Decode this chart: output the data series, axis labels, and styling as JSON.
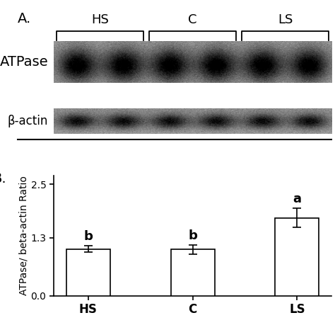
{
  "panel_a_label": "A.",
  "panel_b_label": "B.",
  "groups": [
    "HS",
    "C",
    "LS"
  ],
  "bar_values": [
    1.05,
    1.04,
    1.75
  ],
  "bar_errors": [
    0.07,
    0.1,
    0.22
  ],
  "bar_color": "#ffffff",
  "bar_edgecolor": "#000000",
  "ylim": [
    0,
    2.7
  ],
  "yticks": [
    0.0,
    1.3,
    2.5
  ],
  "ylabel": "ATPase/ beta-actin Ratio",
  "significance_labels": [
    "b",
    "b",
    "a"
  ],
  "sig_fontsize": 13,
  "axis_fontsize": 10,
  "tick_fontsize": 10,
  "group_label_fontsize": 12,
  "blot_label_atpase": "ATPase",
  "blot_label_bactin": "β-actin",
  "background_color": "#ffffff",
  "blot_bg_color": "#c8c8c8",
  "band_dark": "#1a1a1a",
  "band_mid": "#505050",
  "band_light": "#909090",
  "num_lanes": 6,
  "bracket_label_fontsize": 13,
  "panel_label_fontsize": 14
}
